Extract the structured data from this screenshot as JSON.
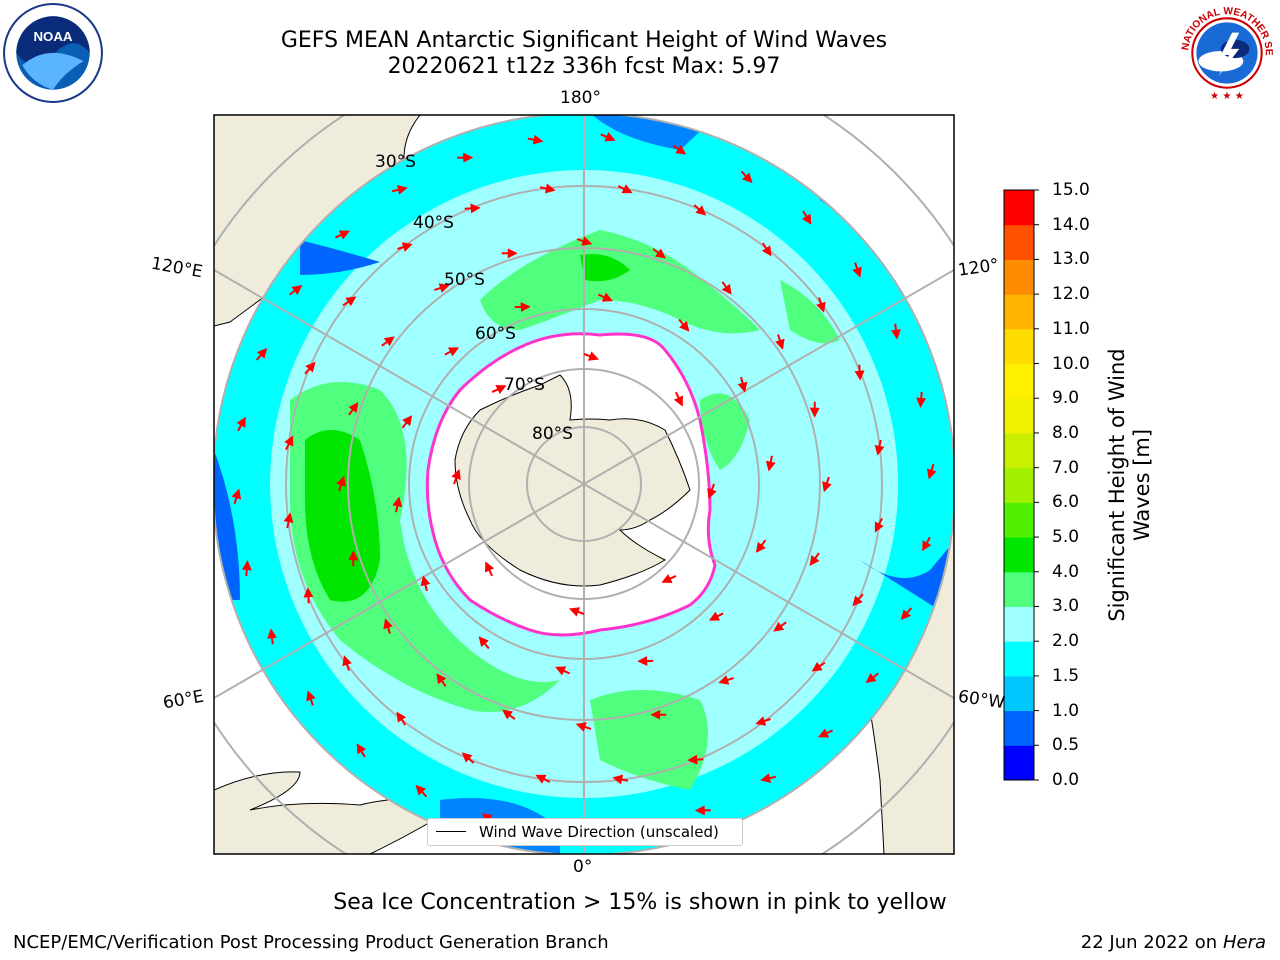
{
  "title": {
    "line1": "GEFS MEAN Antarctic Significant Height of Wind Waves",
    "line2": "20220621 t12z 336h fcst   Max: 5.97"
  },
  "logos": {
    "left": "noaa-logo",
    "left_text": "NOAA",
    "right": "national-weather-service-logo",
    "right_text": "NATIONAL WEATHER SERVICE"
  },
  "map": {
    "projection": "south-polar-stereographic",
    "longitude_labels": {
      "top": "180°",
      "bottom": "0°",
      "upper_left": "120°E",
      "lower_left": "60°E",
      "upper_right": "120°",
      "lower_right": "60°W"
    },
    "latitude_labels": [
      "30°S",
      "40°S",
      "50°S",
      "60°S",
      "70°S",
      "80°S"
    ],
    "legend": "Wind Wave Direction (unscaled)",
    "colors": {
      "land": "#efecdc",
      "ocean_1_5_2": "#00ffff",
      "ocean_2_3": "#a0ffff",
      "ocean_3_4": "#50ff7e",
      "ocean_4_5": "#00e600",
      "ocean_1_1_5": "#00e5ff",
      "ocean_0_5_1": "#0064ff",
      "sea_ice": "#ffffff",
      "ice_edge": "#ff33cc",
      "arrow": "#ff0000",
      "graticule": "#b0b0b0"
    }
  },
  "colorbar": {
    "label_line1": "Significant Height of Wind",
    "label_line2": "Waves [m]",
    "ticks": [
      "0.0",
      "0.5",
      "1.0",
      "1.5",
      "2.0",
      "3.0",
      "4.0",
      "5.0",
      "6.0",
      "7.0",
      "8.0",
      "9.0",
      "10.0",
      "11.0",
      "12.0",
      "13.0",
      "14.0",
      "15.0"
    ],
    "colors": [
      "#0000ff",
      "#0064ff",
      "#00c8ff",
      "#00ffff",
      "#a0ffff",
      "#50ff7e",
      "#00e600",
      "#50f000",
      "#a0f000",
      "#c8f000",
      "#f0f000",
      "#fff000",
      "#ffdc00",
      "#ffb400",
      "#ff8c00",
      "#ff5000",
      "#ff0000"
    ]
  },
  "note": "Sea Ice Concentration > 15% is shown in pink to yellow",
  "footer": {
    "left": "NCEP/EMC/Verification Post Processing Product Generation Branch",
    "right_date": "22 Jun 2022 on",
    "right_host": "Hera"
  }
}
